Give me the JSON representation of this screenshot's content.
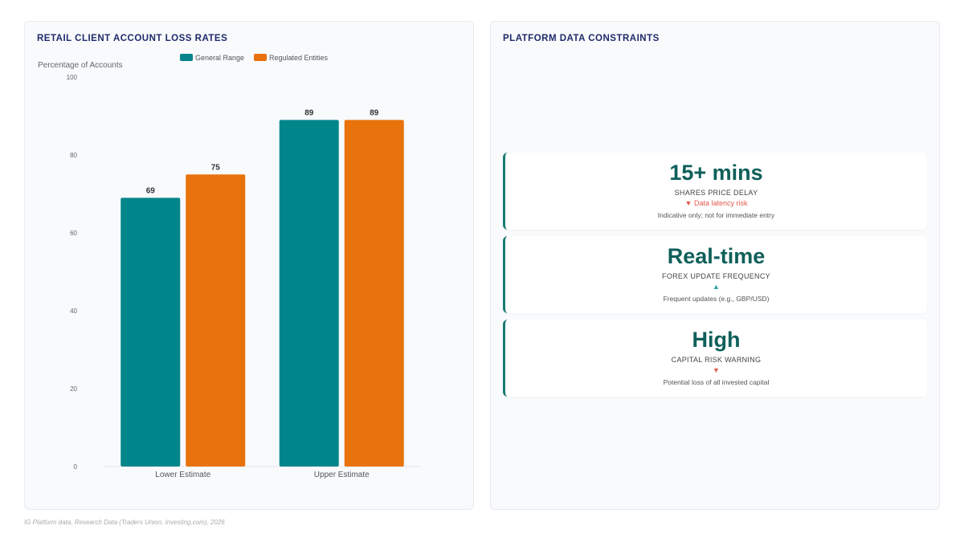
{
  "left_panel": {
    "title": "RETAIL CLIENT ACCOUNT LOSS RATES"
  },
  "right_panel": {
    "title": "PLATFORM DATA CONSTRAINTS",
    "cards": [
      {
        "value": "15+ mins",
        "label": "SHARES PRICE DELAY",
        "trend_direction": "down",
        "trend_arrow": "▼",
        "trend_text": "Data latency risk",
        "note": "Indicative only; not for immediate entry"
      },
      {
        "value": "Real-time",
        "label": "FOREX UPDATE FREQUENCY",
        "trend_direction": "up",
        "trend_arrow": "▲",
        "trend_text": "",
        "note": "Frequent updates (e.g., GBP/USD)"
      },
      {
        "value": "High",
        "label": "CAPITAL RISK WARNING",
        "trend_direction": "down",
        "trend_arrow": "▼",
        "trend_text": "",
        "note": "Potential loss of all invested capital"
      }
    ]
  },
  "source": "IG Platform data, Research Data (Traders Union, Investing.com), 2026",
  "chart_data": {
    "type": "bar",
    "title": "RETAIL CLIENT ACCOUNT LOSS RATES",
    "ylabel": "Percentage of Accounts",
    "xlabel": "",
    "categories": [
      "Lower Estimate",
      "Upper Estimate"
    ],
    "series": [
      {
        "name": "General Range",
        "color": "#00858a",
        "values": [
          69,
          89
        ]
      },
      {
        "name": "Regulated Entities",
        "color": "#e8720c",
        "values": [
          75,
          89
        ]
      }
    ],
    "ylim": [
      0,
      100
    ],
    "yticks": [
      0,
      20,
      40,
      60,
      80,
      100
    ],
    "legend_position": "top",
    "grid": false
  }
}
